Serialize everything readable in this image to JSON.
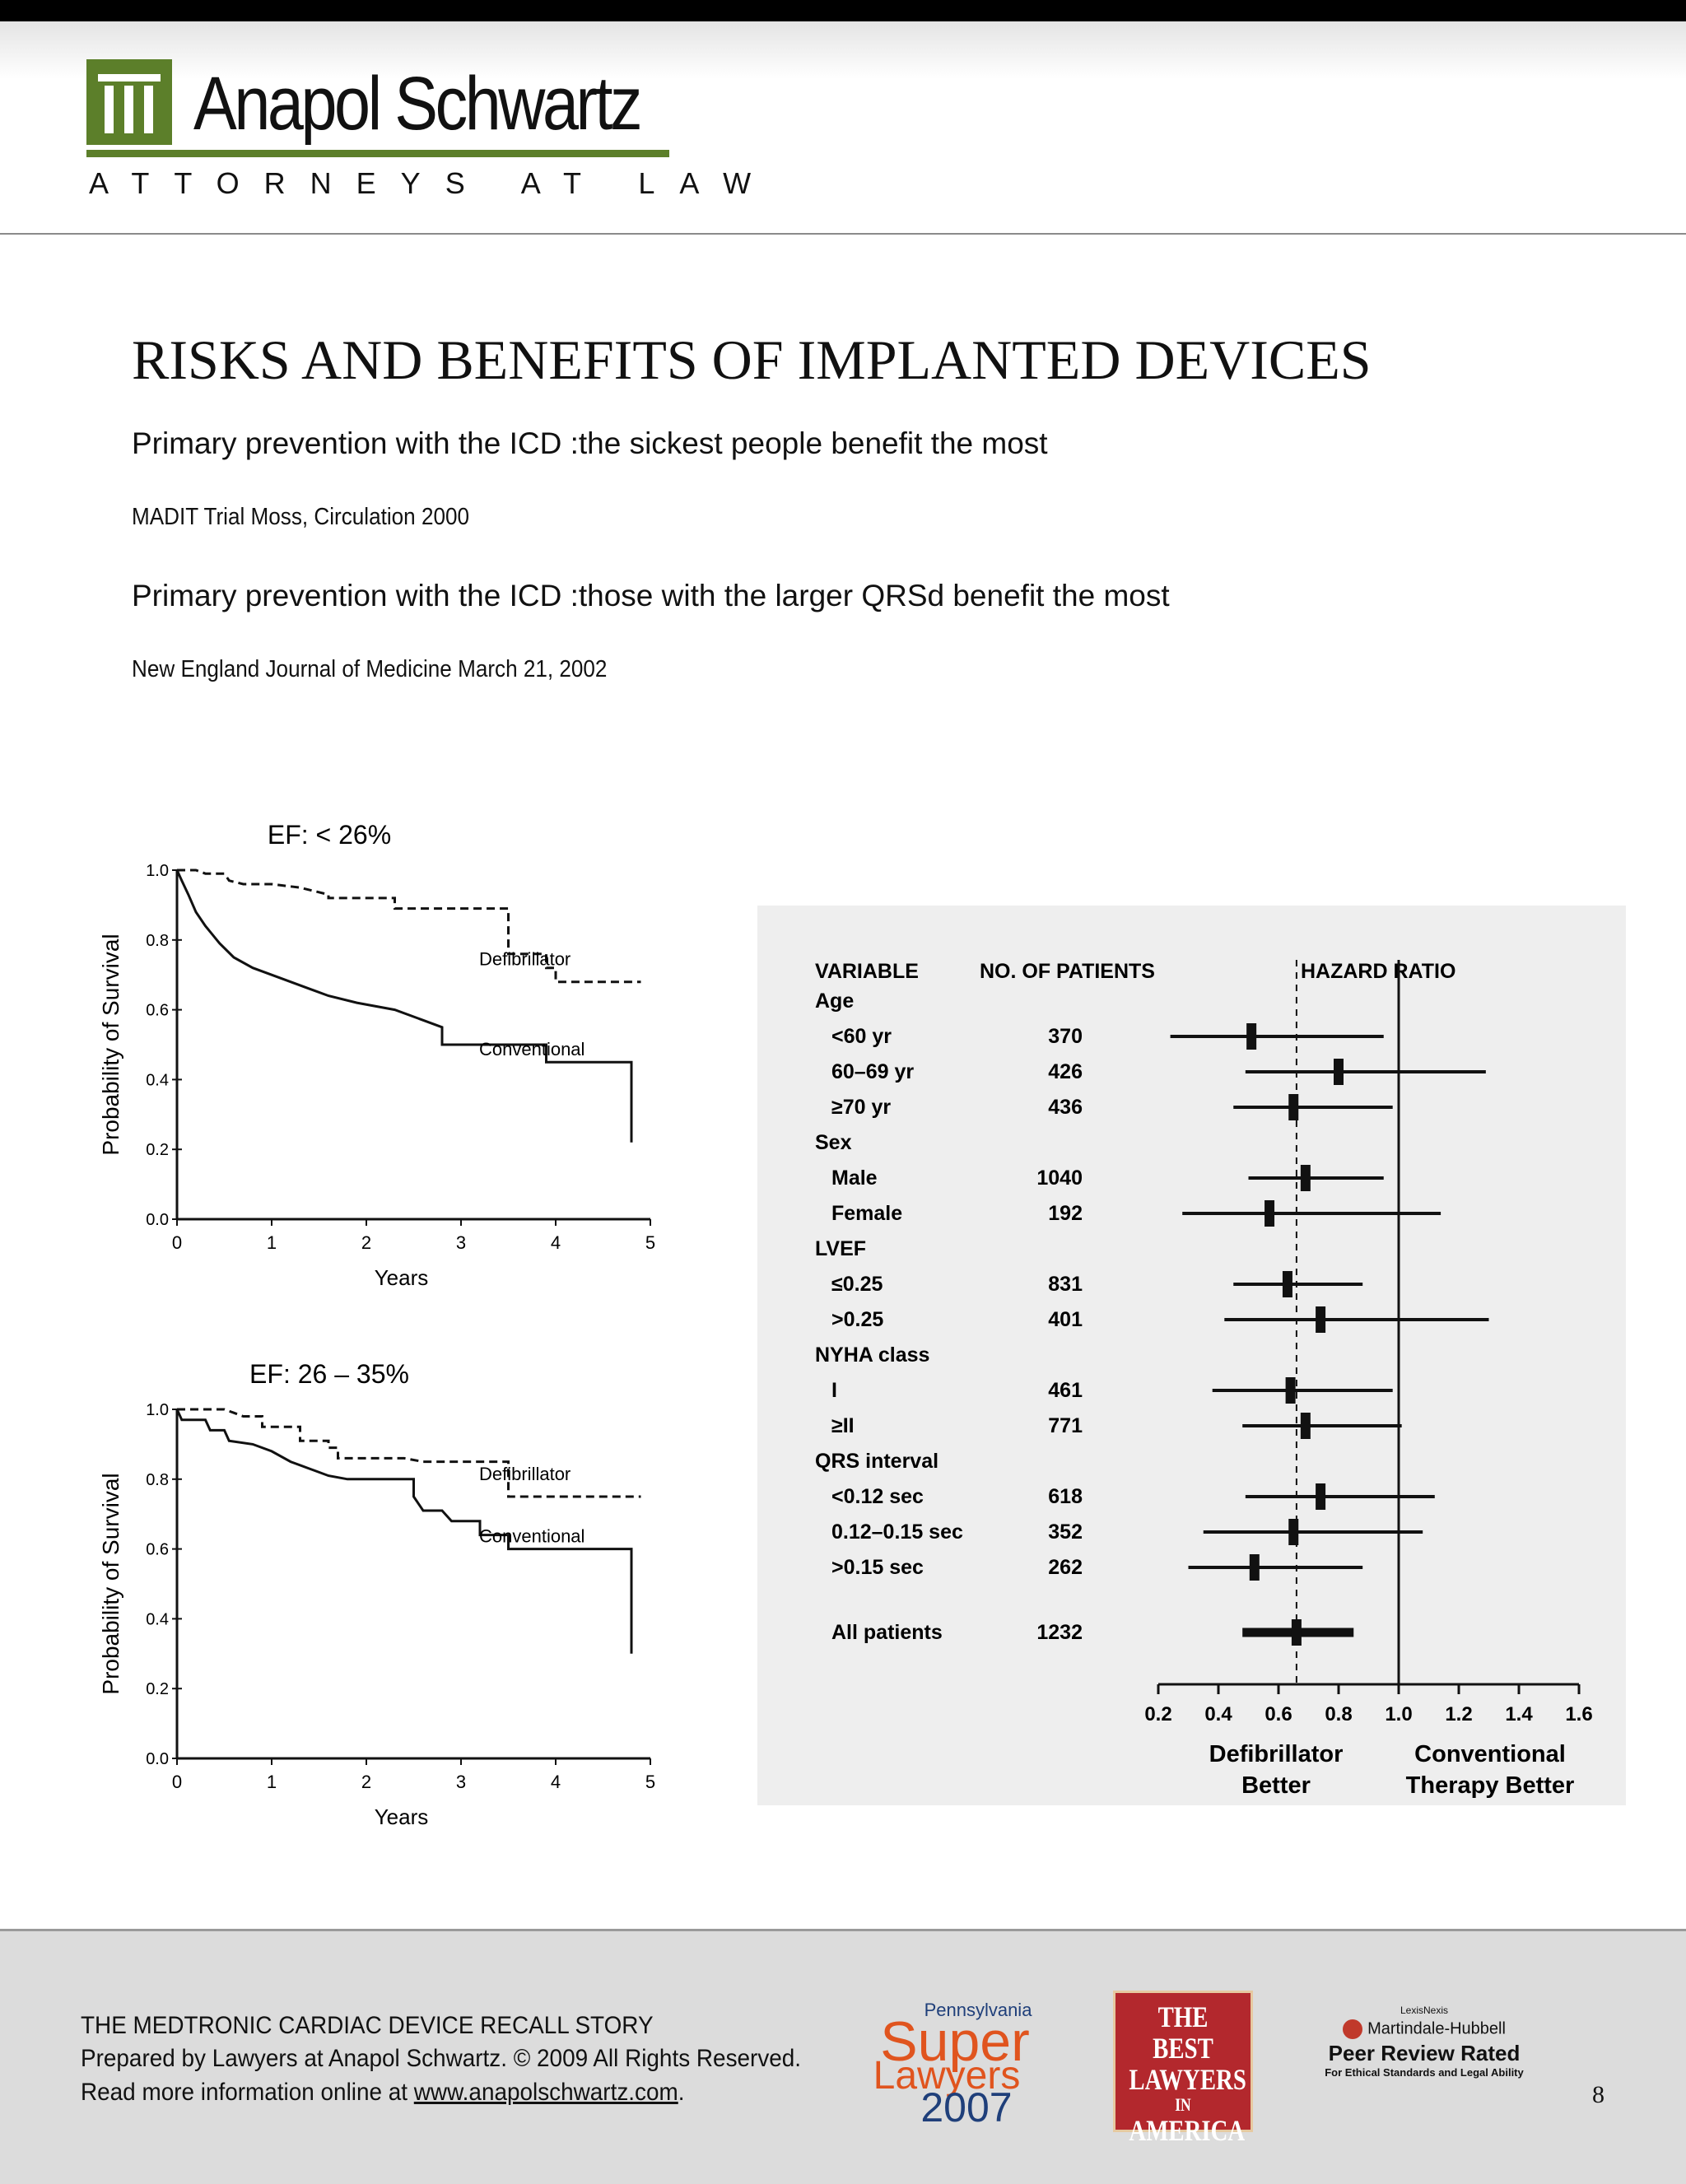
{
  "brand": {
    "name": "Anapol Schwartz",
    "tagline": "ATTORNEYS AT LAW",
    "accent_color": "#5c7f2a"
  },
  "page": {
    "title": "RISKS AND BENEFITS OF IMPLANTED DEVICES",
    "subtitle_1": "Primary prevention with the ICD :the sickest people benefit the most",
    "citation_1": "MADIT Trial Moss, Circulation 2000",
    "subtitle_2": "Primary prevention with the ICD :those with the larger QRSd benefit the most",
    "citation_2": "New England Journal of  Medicine March 21, 2002",
    "page_number": "8"
  },
  "chart_data": [
    {
      "type": "line",
      "title": "EF: < 26%",
      "xlabel": "Years",
      "ylabel": "Probability  of  Survival",
      "x_ticks": [
        "0",
        "1",
        "2",
        "3",
        "4",
        "5"
      ],
      "y_ticks": [
        "0.0",
        "0.2",
        "0.4",
        "0.6",
        "0.8",
        "1.0"
      ],
      "xlim": [
        0,
        5
      ],
      "ylim": [
        0,
        1
      ],
      "series": [
        {
          "name": "Defibrillator",
          "style": "dashed",
          "points": [
            [
              0,
              1.0
            ],
            [
              0.2,
              1.0
            ],
            [
              0.3,
              0.99
            ],
            [
              0.5,
              0.99
            ],
            [
              0.55,
              0.97
            ],
            [
              0.7,
              0.96
            ],
            [
              1.0,
              0.96
            ],
            [
              1.3,
              0.95
            ],
            [
              1.6,
              0.93
            ],
            [
              1.6,
              0.92
            ],
            [
              2.3,
              0.92
            ],
            [
              2.3,
              0.89
            ],
            [
              2.8,
              0.89
            ],
            [
              3.5,
              0.89
            ],
            [
              3.5,
              0.76
            ],
            [
              3.9,
              0.76
            ],
            [
              3.9,
              0.72
            ],
            [
              4.0,
              0.72
            ],
            [
              4.0,
              0.68
            ],
            [
              4.9,
              0.68
            ]
          ]
        },
        {
          "name": "Conventional",
          "style": "solid",
          "points": [
            [
              0,
              1.0
            ],
            [
              0.05,
              0.97
            ],
            [
              0.12,
              0.93
            ],
            [
              0.2,
              0.88
            ],
            [
              0.3,
              0.84
            ],
            [
              0.45,
              0.79
            ],
            [
              0.6,
              0.75
            ],
            [
              0.8,
              0.72
            ],
            [
              1.0,
              0.7
            ],
            [
              1.2,
              0.68
            ],
            [
              1.4,
              0.66
            ],
            [
              1.6,
              0.64
            ],
            [
              1.9,
              0.62
            ],
            [
              2.3,
              0.6
            ],
            [
              2.6,
              0.57
            ],
            [
              2.8,
              0.55
            ],
            [
              2.8,
              0.5
            ],
            [
              3.9,
              0.5
            ],
            [
              3.9,
              0.45
            ],
            [
              4.8,
              0.45
            ],
            [
              4.8,
              0.22
            ]
          ]
        }
      ]
    },
    {
      "type": "line",
      "title": "EF: 26  –  35%",
      "xlabel": "Years",
      "ylabel": "Probability  of  Survival",
      "x_ticks": [
        "0",
        "1",
        "2",
        "3",
        "4",
        "5"
      ],
      "y_ticks": [
        "0.0",
        "0.2",
        "0.4",
        "0.6",
        "0.8",
        "1.0"
      ],
      "xlim": [
        0,
        5
      ],
      "ylim": [
        0,
        1
      ],
      "series": [
        {
          "name": "Defibrillator",
          "style": "dashed",
          "points": [
            [
              0,
              1.0
            ],
            [
              0.5,
              1.0
            ],
            [
              0.6,
              0.99
            ],
            [
              0.7,
              0.98
            ],
            [
              0.9,
              0.98
            ],
            [
              0.9,
              0.95
            ],
            [
              1.3,
              0.95
            ],
            [
              1.3,
              0.91
            ],
            [
              1.6,
              0.91
            ],
            [
              1.6,
              0.89
            ],
            [
              1.7,
              0.89
            ],
            [
              1.7,
              0.86
            ],
            [
              2.4,
              0.86
            ],
            [
              2.6,
              0.85
            ],
            [
              3.5,
              0.85
            ],
            [
              3.5,
              0.75
            ],
            [
              4.9,
              0.75
            ]
          ]
        },
        {
          "name": "Conventional",
          "style": "solid",
          "points": [
            [
              0,
              1.0
            ],
            [
              0.05,
              0.97
            ],
            [
              0.3,
              0.97
            ],
            [
              0.35,
              0.94
            ],
            [
              0.5,
              0.94
            ],
            [
              0.55,
              0.91
            ],
            [
              0.8,
              0.9
            ],
            [
              1.0,
              0.88
            ],
            [
              1.2,
              0.85
            ],
            [
              1.4,
              0.83
            ],
            [
              1.6,
              0.81
            ],
            [
              1.8,
              0.8
            ],
            [
              2.5,
              0.8
            ],
            [
              2.5,
              0.75
            ],
            [
              2.6,
              0.71
            ],
            [
              2.8,
              0.71
            ],
            [
              2.9,
              0.68
            ],
            [
              3.2,
              0.68
            ],
            [
              3.2,
              0.64
            ],
            [
              3.5,
              0.64
            ],
            [
              3.5,
              0.6
            ],
            [
              4.8,
              0.6
            ],
            [
              4.8,
              0.3
            ]
          ]
        }
      ]
    },
    {
      "type": "forest",
      "col_variable": "VARIABLE",
      "col_patients": "NO. OF PATIENTS",
      "col_hr": "HAZARD RATIO",
      "x_ticks": [
        0.2,
        0.4,
        0.6,
        0.8,
        1.0,
        1.2,
        1.4,
        1.6
      ],
      "x_tick_labels": [
        "0.2",
        "0.4",
        "0.6",
        "0.8",
        "1.0",
        "1.2",
        "1.4",
        "1.6"
      ],
      "xlim": [
        0.2,
        1.6
      ],
      "reference_line": 1.0,
      "overall_line": 0.66,
      "label_left_1": "Defibrillator",
      "label_left_2": "Better",
      "label_right_1": "Conventional",
      "label_right_2": "Therapy Better",
      "rows": [
        {
          "label": "Age",
          "header": true
        },
        {
          "label": "<60 yr",
          "n": "370",
          "hr": 0.51,
          "lo": 0.24,
          "hi": 0.95
        },
        {
          "label": "60–69 yr",
          "n": "426",
          "hr": 0.8,
          "lo": 0.49,
          "hi": 1.29
        },
        {
          "label": "≥70 yr",
          "n": "436",
          "hr": 0.65,
          "lo": 0.45,
          "hi": 0.98
        },
        {
          "label": "Sex",
          "header": true
        },
        {
          "label": "Male",
          "n": "1040",
          "hr": 0.69,
          "lo": 0.5,
          "hi": 0.95
        },
        {
          "label": "Female",
          "n": "192",
          "hr": 0.57,
          "lo": 0.28,
          "hi": 1.14
        },
        {
          "label": "LVEF",
          "header": true
        },
        {
          "label": "≤0.25",
          "n": "831",
          "hr": 0.63,
          "lo": 0.45,
          "hi": 0.88
        },
        {
          "label": ">0.25",
          "n": "401",
          "hr": 0.74,
          "lo": 0.42,
          "hi": 1.3
        },
        {
          "label": "NYHA class",
          "header": true
        },
        {
          "label": "I",
          "n": "461",
          "hr": 0.64,
          "lo": 0.38,
          "hi": 0.98
        },
        {
          "label": "≥II",
          "n": "771",
          "hr": 0.69,
          "lo": 0.48,
          "hi": 1.01
        },
        {
          "label": "QRS interval",
          "header": true
        },
        {
          "label": "<0.12 sec",
          "n": "618",
          "hr": 0.74,
          "lo": 0.49,
          "hi": 1.12
        },
        {
          "label": "0.12–0.15 sec",
          "n": "352",
          "hr": 0.65,
          "lo": 0.35,
          "hi": 1.08
        },
        {
          "label": ">0.15 sec",
          "n": "262",
          "hr": 0.52,
          "lo": 0.3,
          "hi": 0.88
        },
        {
          "label": "All patients",
          "n": "1232",
          "hr": 0.66,
          "lo": 0.48,
          "hi": 0.85,
          "overall": true
        }
      ]
    }
  ],
  "footer": {
    "line_1": "THE MEDTRONIC CARDIAC DEVICE RECALL STORY",
    "line_2": "Prepared by Lawyers at Anapol Schwartz. © 2009 All Rights Reserved.",
    "line_3_prefix": "Read more information online at ",
    "link_text": "www.anapolschwartz.com",
    "line_3_suffix": ".",
    "badge_super_lawyers": {
      "top": "Pennsylvania",
      "word1": "Super",
      "word2": "Lawyers",
      "year": "2007",
      "color": "#e0541e",
      "year_color": "#1f3f7a"
    },
    "badge_best_lawyers": {
      "line1": "THE BEST",
      "line2": "LAWYERS",
      "line3": "IN",
      "line4": "AMERICA"
    },
    "badge_martindale": {
      "top": "LexisNexis",
      "name": "Martindale-Hubbell",
      "rating": "Peer Review Rated",
      "sub": "For Ethical Standards and Legal Ability"
    }
  }
}
